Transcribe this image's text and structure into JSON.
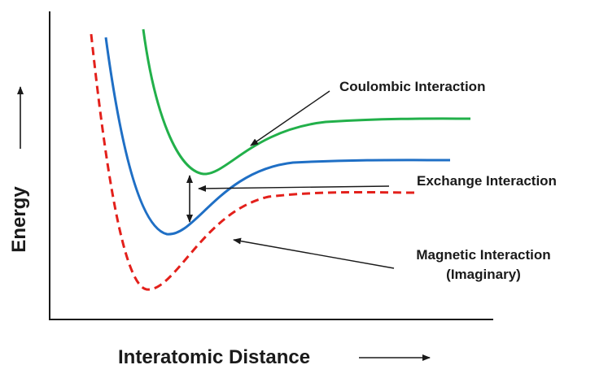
{
  "axes": {
    "x_label": "Interatomic Distance",
    "y_label": "Energy"
  },
  "curves": [
    {
      "key": "coulombic",
      "color": "#22b04a",
      "style": "solid"
    },
    {
      "key": "exchange",
      "color": "#1f6fc5",
      "style": "solid"
    },
    {
      "key": "magnetic",
      "color": "#e3201b",
      "style": "dashed"
    }
  ],
  "annotations": {
    "coulombic": "Coulombic Interaction",
    "exchange": "Exchange Interaction",
    "magnetic_line1": "Magnetic Interaction",
    "magnetic_line2": "(Imaginary)"
  },
  "colors": {
    "axis": "#1a1a1a",
    "text": "#1a1a1a",
    "background": "#ffffff"
  }
}
